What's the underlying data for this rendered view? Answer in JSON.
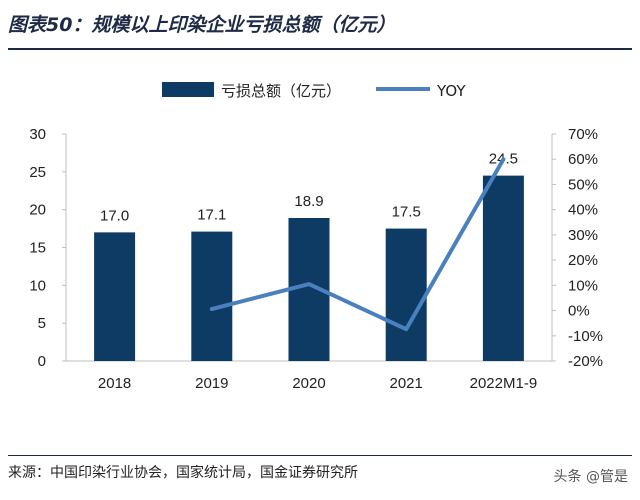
{
  "figure": {
    "title": "图表50：规模以上印染企业亏损总额（亿元）",
    "source": "来源：中国印染行业协会，国家统计局，国金证券研究所",
    "watermark": "头条 @管是"
  },
  "colors": {
    "bar": "#0d3b63",
    "line": "#4a80c0",
    "axis": "#bfbfbf"
  },
  "chart_data": {
    "type": "bar",
    "categories": [
      "2018",
      "2019",
      "2020",
      "2021",
      "2022M1-9"
    ],
    "series": [
      {
        "name": "亏损总额（亿元）",
        "type": "bar",
        "axis": "left",
        "values": [
          17.0,
          17.1,
          18.9,
          17.5,
          24.5
        ],
        "labels": [
          "17.0",
          "17.1",
          "18.9",
          "17.5",
          "24.5"
        ]
      },
      {
        "name": "YOY",
        "type": "line",
        "axis": "right",
        "values": [
          null,
          0.6,
          10.5,
          -7.4,
          60.0
        ]
      }
    ],
    "ylim": [
      0,
      30
    ],
    "yticks": [
      "0",
      "5",
      "10",
      "15",
      "20",
      "25",
      "30"
    ],
    "y2lim": [
      -20,
      70
    ],
    "y2ticks": [
      "-20%",
      "-10%",
      "0%",
      "10%",
      "20%",
      "30%",
      "40%",
      "50%",
      "60%",
      "70%"
    ],
    "legend": "top"
  }
}
